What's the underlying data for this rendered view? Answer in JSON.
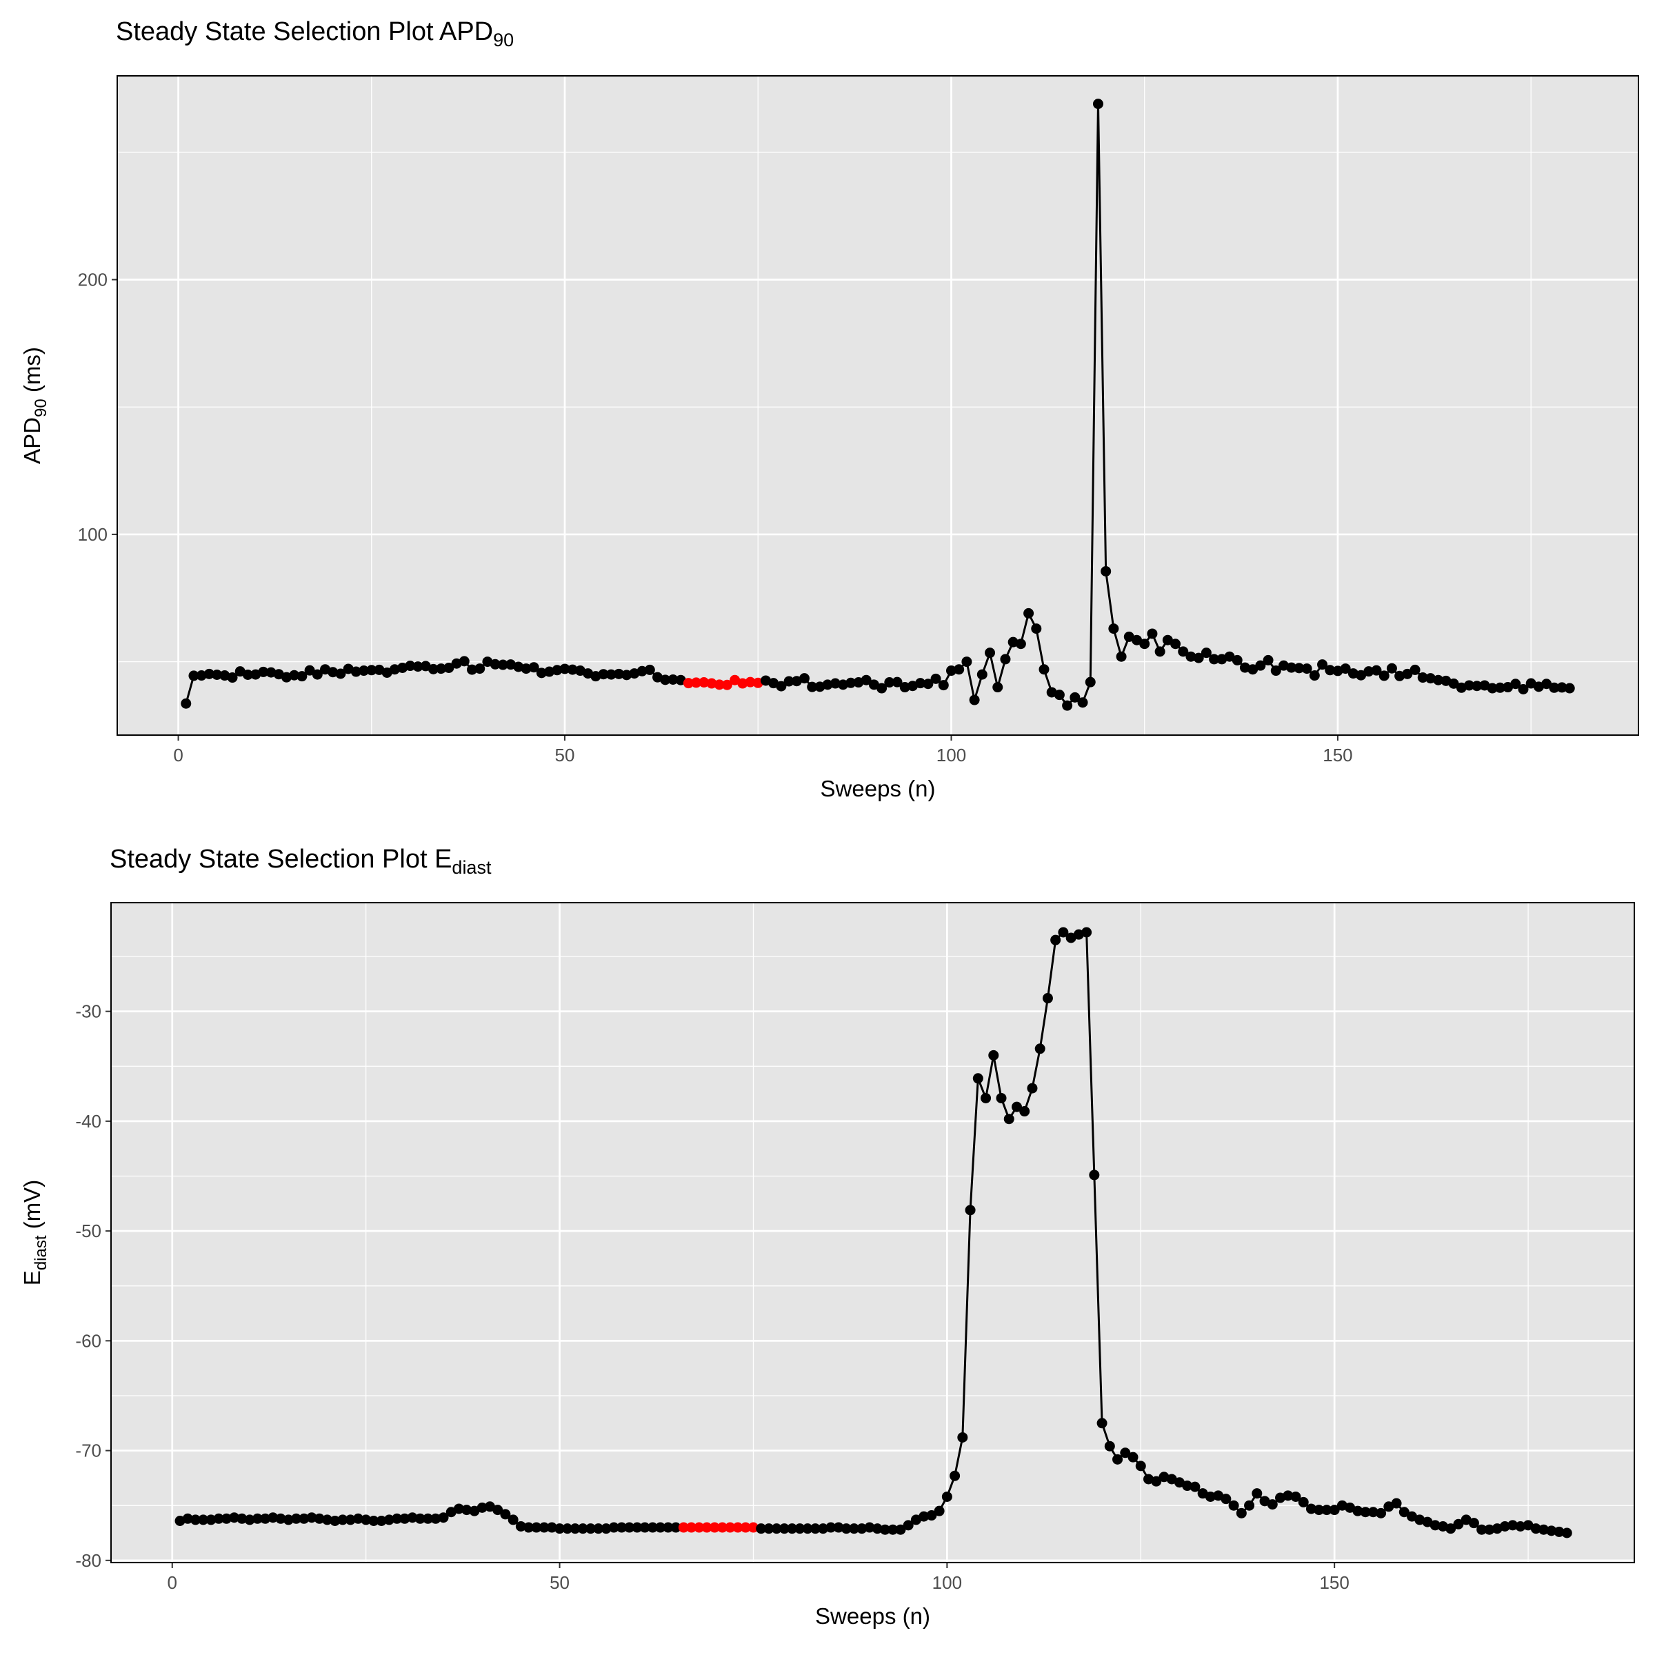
{
  "chart_data": [
    {
      "type": "line",
      "title": "Steady State Selection Plot APD",
      "title_subscript": "90",
      "xlabel": "Sweeps (n)",
      "ylabel": "APD",
      "ylabel_subscript": "90",
      "ylabel_suffix": " (ms)",
      "color": "#000000",
      "background": "#e5e5e5",
      "grid": true,
      "highlight": {
        "range": [
          66,
          75
        ],
        "color": "#ff0000"
      },
      "xlim": [
        -7.9,
        188.9
      ],
      "ylim": [
        21.2,
        280
      ],
      "xticks": [
        0,
        50,
        100,
        150
      ],
      "xminor": [
        25,
        75,
        125,
        175
      ],
      "yticks": [
        100,
        200
      ],
      "yminor": [
        50,
        150,
        250
      ],
      "x": [
        1,
        2,
        3,
        4,
        5,
        6,
        7,
        8,
        9,
        10,
        11,
        12,
        13,
        14,
        15,
        16,
        17,
        18,
        19,
        20,
        21,
        22,
        23,
        24,
        25,
        26,
        27,
        28,
        29,
        30,
        31,
        32,
        33,
        34,
        35,
        36,
        37,
        38,
        39,
        40,
        41,
        42,
        43,
        44,
        45,
        46,
        47,
        48,
        49,
        50,
        51,
        52,
        53,
        54,
        55,
        56,
        57,
        58,
        59,
        60,
        61,
        62,
        63,
        64,
        65,
        66,
        67,
        68,
        69,
        70,
        71,
        72,
        73,
        74,
        75,
        76,
        77,
        78,
        79,
        80,
        81,
        82,
        83,
        84,
        85,
        86,
        87,
        88,
        89,
        90,
        91,
        92,
        93,
        94,
        95,
        96,
        97,
        98,
        99,
        100,
        101,
        102,
        103,
        104,
        105,
        106,
        107,
        108,
        109,
        110,
        111,
        112,
        113,
        114,
        115,
        116,
        117,
        118,
        119,
        120,
        121,
        122,
        123,
        124,
        125,
        126,
        127,
        128,
        129,
        130,
        131,
        132,
        133,
        134,
        135,
        136,
        137,
        138,
        139,
        140,
        141,
        142,
        143,
        144,
        145,
        146,
        147,
        148,
        149,
        150,
        151,
        152,
        153,
        154,
        155,
        156,
        157,
        158,
        159,
        160,
        161,
        162,
        163,
        164,
        165,
        166,
        167,
        168,
        169,
        170,
        171,
        172,
        173,
        174,
        175,
        176,
        177,
        178,
        179,
        180
      ],
      "values": [
        33.6,
        44.5,
        44.6,
        45.2,
        44.9,
        44.6,
        43.8,
        46.2,
        44.9,
        45.0,
        46.0,
        45.8,
        45.1,
        43.9,
        44.7,
        44.3,
        46.6,
        45.0,
        47.0,
        45.9,
        45.3,
        47.2,
        46.1,
        46.5,
        46.7,
        46.8,
        45.7,
        47.0,
        47.6,
        48.4,
        48.1,
        48.3,
        47.1,
        47.3,
        47.6,
        49.3,
        50.2,
        46.9,
        47.3,
        50.0,
        49.0,
        48.8,
        48.9,
        48.0,
        47.3,
        47.8,
        45.6,
        46.1,
        46.7,
        47.2,
        46.9,
        46.5,
        45.4,
        44.3,
        45.1,
        45.0,
        45.2,
        44.8,
        45.4,
        46.3,
        46.8,
        43.9,
        42.9,
        43.0,
        42.8,
        41.6,
        41.8,
        41.9,
        41.5,
        41.0,
        40.9,
        42.8,
        41.5,
        42.0,
        41.7,
        42.6,
        41.6,
        40.4,
        42.3,
        42.4,
        43.5,
        40.1,
        40.2,
        41.0,
        41.5,
        41.0,
        41.7,
        41.9,
        42.8,
        41.0,
        39.6,
        41.9,
        42.0,
        40.0,
        40.5,
        41.6,
        41.3,
        43.3,
        40.8,
        46.5,
        47.0,
        50.0,
        35.0,
        45.0,
        53.5,
        40.0,
        51.0,
        57.7,
        57.0,
        69.0,
        63.0,
        47.0,
        38.0,
        37.0,
        32.8,
        36.0,
        34.0,
        42.0,
        269,
        85.5,
        63,
        52,
        59.8,
        58.5,
        57,
        61,
        54,
        58.5,
        57,
        54,
        52,
        51.5,
        53.5,
        51,
        51,
        52,
        50.6,
        47.7,
        47,
        48.5,
        50.6,
        46.5,
        48.5,
        47.7,
        47.5,
        47.3,
        44.6,
        48.9,
        46.7,
        46.4,
        47.3,
        45.4,
        44.7,
        46.2,
        46.6,
        44.5,
        47.4,
        44.4,
        45.2,
        46.8,
        43.8,
        43.5,
        42.8,
        42.5,
        41.4,
        39.8,
        40.7,
        40.5,
        40.7,
        39.6,
        39.8,
        40.0,
        41.3,
        39.2,
        41.5,
        40.2,
        41.3,
        39.8,
        39.9,
        39.6
      ]
    },
    {
      "type": "line",
      "title": "Steady State Selection Plot E",
      "title_subscript": "diast",
      "xlabel": "Sweeps (n)",
      "ylabel": "E",
      "ylabel_subscript": "diast",
      "ylabel_suffix": " (mV)",
      "color": "#000000",
      "background": "#e5e5e5",
      "grid": true,
      "highlight": {
        "range": [
          66,
          75
        ],
        "color": "#ff0000"
      },
      "xlim": [
        -7.9,
        188.7
      ],
      "ylim": [
        -80.2,
        -20.1
      ],
      "xticks": [
        0,
        50,
        100,
        150
      ],
      "xminor": [
        25,
        75,
        125,
        175
      ],
      "yticks": [
        -80,
        -70,
        -60,
        -50,
        -40,
        -30
      ],
      "yminor": [
        -75,
        -65,
        -55,
        -45,
        -35,
        -25
      ],
      "x": [
        1,
        2,
        3,
        4,
        5,
        6,
        7,
        8,
        9,
        10,
        11,
        12,
        13,
        14,
        15,
        16,
        17,
        18,
        19,
        20,
        21,
        22,
        23,
        24,
        25,
        26,
        27,
        28,
        29,
        30,
        31,
        32,
        33,
        34,
        35,
        36,
        37,
        38,
        39,
        40,
        41,
        42,
        43,
        44,
        45,
        46,
        47,
        48,
        49,
        50,
        51,
        52,
        53,
        54,
        55,
        56,
        57,
        58,
        59,
        60,
        61,
        62,
        63,
        64,
        65,
        66,
        67,
        68,
        69,
        70,
        71,
        72,
        73,
        74,
        75,
        76,
        77,
        78,
        79,
        80,
        81,
        82,
        83,
        84,
        85,
        86,
        87,
        88,
        89,
        90,
        91,
        92,
        93,
        94,
        95,
        96,
        97,
        98,
        99,
        100,
        101,
        102,
        103,
        104,
        105,
        106,
        107,
        108,
        109,
        110,
        111,
        112,
        113,
        114,
        115,
        116,
        117,
        118,
        119,
        120,
        121,
        122,
        123,
        124,
        125,
        126,
        127,
        128,
        129,
        130,
        131,
        132,
        133,
        134,
        135,
        136,
        137,
        138,
        139,
        140,
        141,
        142,
        143,
        144,
        145,
        146,
        147,
        148,
        149,
        150,
        151,
        152,
        153,
        154,
        155,
        156,
        157,
        158,
        159,
        160,
        161,
        162,
        163,
        164,
        165,
        166,
        167,
        168,
        169,
        170,
        171,
        172,
        173,
        174,
        175,
        176,
        177,
        178,
        179,
        180
      ],
      "values": [
        -76.4,
        -76.2,
        -76.3,
        -76.3,
        -76.3,
        -76.2,
        -76.2,
        -76.1,
        -76.2,
        -76.3,
        -76.2,
        -76.2,
        -76.1,
        -76.2,
        -76.3,
        -76.2,
        -76.2,
        -76.1,
        -76.2,
        -76.3,
        -76.4,
        -76.3,
        -76.3,
        -76.2,
        -76.3,
        -76.4,
        -76.4,
        -76.3,
        -76.2,
        -76.2,
        -76.1,
        -76.2,
        -76.2,
        -76.2,
        -76.1,
        -75.6,
        -75.3,
        -75.4,
        -75.5,
        -75.2,
        -75.1,
        -75.4,
        -75.8,
        -76.3,
        -76.9,
        -77.0,
        -77.0,
        -77.0,
        -77.0,
        -77.1,
        -77.1,
        -77.1,
        -77.1,
        -77.1,
        -77.1,
        -77.1,
        -77.0,
        -77.0,
        -77.0,
        -77.0,
        -77.0,
        -77.0,
        -77.0,
        -77.0,
        -77.0,
        -77.0,
        -77.0,
        -77.0,
        -77.0,
        -77.0,
        -77.0,
        -77.0,
        -77.0,
        -77.0,
        -77.0,
        -77.1,
        -77.1,
        -77.1,
        -77.1,
        -77.1,
        -77.1,
        -77.1,
        -77.1,
        -77.1,
        -77.0,
        -77.0,
        -77.1,
        -77.1,
        -77.1,
        -77.0,
        -77.1,
        -77.2,
        -77.2,
        -77.2,
        -76.8,
        -76.3,
        -76.0,
        -75.9,
        -75.5,
        -74.2,
        -72.3,
        -68.8,
        -48.1,
        -36.1,
        -37.9,
        -34.0,
        -37.9,
        -39.8,
        -38.7,
        -39.1,
        -37.0,
        -33.4,
        -28.8,
        -23.5,
        -22.8,
        -23.3,
        -23.0,
        -22.8,
        -44.9,
        -67.5,
        -69.6,
        -70.8,
        -70.2,
        -70.6,
        -71.4,
        -72.6,
        -72.8,
        -72.4,
        -72.6,
        -72.9,
        -73.2,
        -73.3,
        -73.9,
        -74.2,
        -74.1,
        -74.4,
        -75.0,
        -75.7,
        -75.0,
        -73.9,
        -74.6,
        -74.9,
        -74.3,
        -74.1,
        -74.2,
        -74.7,
        -75.3,
        -75.4,
        -75.4,
        -75.4,
        -75.0,
        -75.2,
        -75.5,
        -75.6,
        -75.6,
        -75.7,
        -75.1,
        -74.8,
        -75.6,
        -76.0,
        -76.3,
        -76.5,
        -76.8,
        -76.9,
        -77.1,
        -76.7,
        -76.3,
        -76.6,
        -77.2,
        -77.2,
        -77.1,
        -76.9,
        -76.8,
        -76.9,
        -76.8,
        -77.1,
        -77.2,
        -77.3,
        -77.4,
        -77.5
      ]
    }
  ]
}
